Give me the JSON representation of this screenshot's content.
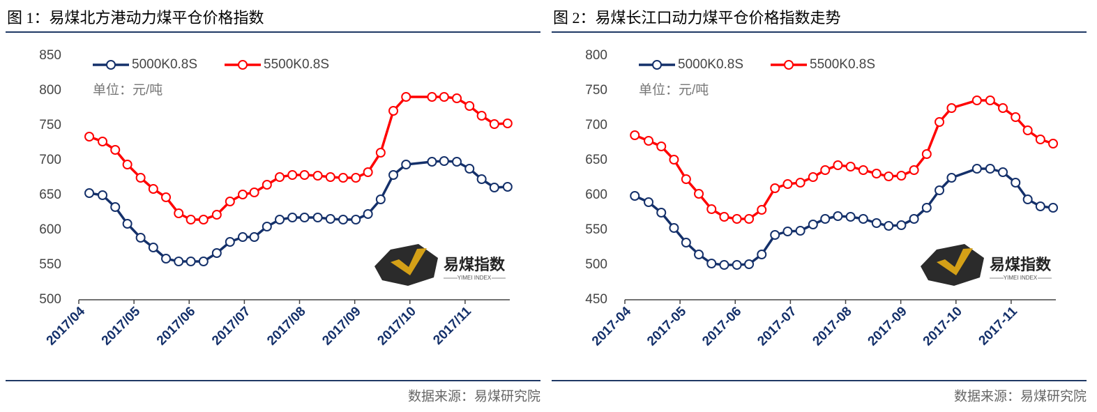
{
  "chart_data": [
    {
      "type": "line",
      "title": "图 1：易煤北方港动力煤平仓价格指数",
      "unit_label": "单位：元/吨",
      "source": "数据来源：易煤研究院",
      "logo_text": "易煤指数",
      "logo_subtext": "YIMEI INDEX",
      "x": [
        0.19,
        0.43,
        0.66,
        0.88,
        1.12,
        1.35,
        1.58,
        1.81,
        2.03,
        2.26,
        2.5,
        2.74,
        2.97,
        3.18,
        3.41,
        3.64,
        3.87,
        4.09,
        4.33,
        4.56,
        4.79,
        5.02,
        5.24,
        5.47,
        5.7,
        5.93,
        6.4,
        6.62,
        6.85,
        7.08,
        7.3,
        7.53,
        7.77
      ],
      "series": [
        {
          "name": "5000K0.8S",
          "color": "#14306a",
          "values": [
            653,
            650,
            633,
            609,
            589,
            575,
            559,
            555,
            555,
            555,
            567,
            583,
            590,
            590,
            605,
            615,
            618,
            618,
            618,
            616,
            615,
            615,
            623,
            644,
            679,
            694,
            698,
            699,
            698,
            688,
            673,
            661,
            662
          ]
        },
        {
          "name": "5500K0.8S",
          "color": "#ff0000",
          "values": [
            734,
            727,
            715,
            694,
            675,
            659,
            647,
            624,
            615,
            615,
            622,
            641,
            651,
            654,
            665,
            676,
            679,
            679,
            678,
            676,
            675,
            675,
            683,
            711,
            771,
            791,
            791,
            791,
            789,
            778,
            764,
            752,
            753
          ]
        }
      ],
      "xlim": [
        0,
        7.81
      ],
      "xticks": [
        {
          "value": 0,
          "label": "2017/04"
        },
        {
          "value": 1,
          "label": "2017/05"
        },
        {
          "value": 2,
          "label": "2017/06"
        },
        {
          "value": 3,
          "label": "2017/07"
        },
        {
          "value": 4,
          "label": "2017/08"
        },
        {
          "value": 5,
          "label": "2017/09"
        },
        {
          "value": 6,
          "label": "2017/10"
        },
        {
          "value": 7,
          "label": "2017/11"
        }
      ],
      "ylim": [
        500,
        850
      ],
      "yticks": [
        500,
        550,
        600,
        650,
        700,
        750,
        800,
        850
      ],
      "legend": "top-left"
    },
    {
      "type": "line",
      "title": "图 2：易煤长江口动力煤平仓价格指数走势",
      "unit_label": "单位：元/吨",
      "source": "数据来源：易煤研究院",
      "logo_text": "易煤指数",
      "logo_subtext": "YIMEI INDEX",
      "x": [
        0.18,
        0.43,
        0.66,
        0.89,
        1.11,
        1.34,
        1.57,
        1.8,
        2.03,
        2.25,
        2.48,
        2.72,
        2.95,
        3.18,
        3.41,
        3.63,
        3.86,
        4.09,
        4.32,
        4.56,
        4.78,
        5.01,
        5.24,
        5.47,
        5.7,
        5.92,
        6.38,
        6.62,
        6.85,
        7.08,
        7.3,
        7.53,
        7.76
      ],
      "series": [
        {
          "name": "5000K0.8S",
          "color": "#14306a",
          "values": [
            599,
            590,
            575,
            553,
            532,
            515,
            502,
            500,
            500,
            501,
            515,
            543,
            548,
            549,
            558,
            566,
            570,
            569,
            566,
            560,
            556,
            557,
            566,
            582,
            607,
            625,
            638,
            638,
            633,
            618,
            594,
            584,
            582
          ]
        },
        {
          "name": "5500K0.8S",
          "color": "#ff0000",
          "values": [
            686,
            678,
            670,
            651,
            623,
            602,
            580,
            569,
            566,
            566,
            579,
            610,
            616,
            618,
            626,
            636,
            643,
            641,
            636,
            631,
            627,
            628,
            636,
            659,
            705,
            725,
            736,
            736,
            725,
            712,
            693,
            680,
            674
          ]
        }
      ],
      "xlim": [
        0,
        7.81
      ],
      "xticks": [
        {
          "value": 0,
          "label": "2017-04"
        },
        {
          "value": 1,
          "label": "2017-05"
        },
        {
          "value": 2,
          "label": "2017-06"
        },
        {
          "value": 3,
          "label": "2017-07"
        },
        {
          "value": 4,
          "label": "2017-08"
        },
        {
          "value": 5,
          "label": "2017-09"
        },
        {
          "value": 6,
          "label": "2017-10"
        },
        {
          "value": 7,
          "label": "2017-11"
        }
      ],
      "ylim": [
        450,
        800
      ],
      "yticks": [
        450,
        500,
        550,
        600,
        650,
        700,
        750,
        800
      ],
      "legend": "top-left"
    }
  ]
}
